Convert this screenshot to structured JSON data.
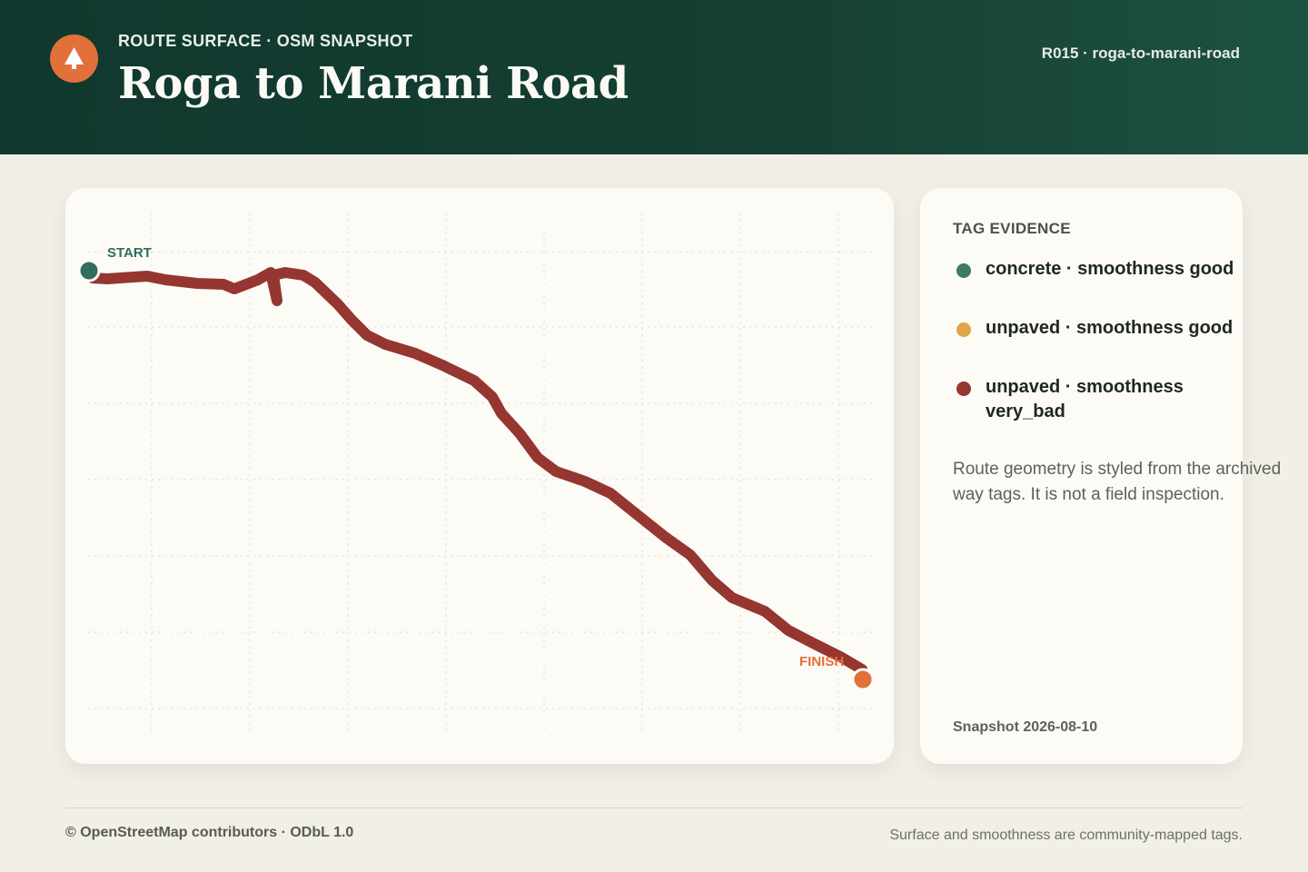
{
  "header": {
    "eyebrow": "ROUTE SURFACE · OSM SNAPSHOT",
    "title": "Roga to Marani Road",
    "route_id": "R015 · roga-to-marani-road",
    "logo_icon": "tree-icon"
  },
  "map": {
    "start_label": "START",
    "finish_label": "FINISH",
    "route_segment_surface": "unpaved · smoothness very_bad",
    "colors": {
      "route": "#953631",
      "start": "#2f6e5e",
      "finish": "#e2703a",
      "grid": "#dcd8cc"
    }
  },
  "evidence": {
    "title": "TAG EVIDENCE",
    "items": [
      {
        "label": "concrete · smoothness good",
        "color": "#3f7a69"
      },
      {
        "label": "unpaved · smoothness good",
        "color": "#e0a548"
      },
      {
        "label": "unpaved · smoothness very_bad",
        "color": "#953631"
      }
    ],
    "note": "Route geometry is styled from the archived way tags. It is not a field inspection.",
    "snapshot": "Snapshot 2026-08-10"
  },
  "footer": {
    "attribution": "© OpenStreetMap contributors · ODbL 1.0",
    "footnote": "Surface and smoothness are community-mapped tags."
  }
}
